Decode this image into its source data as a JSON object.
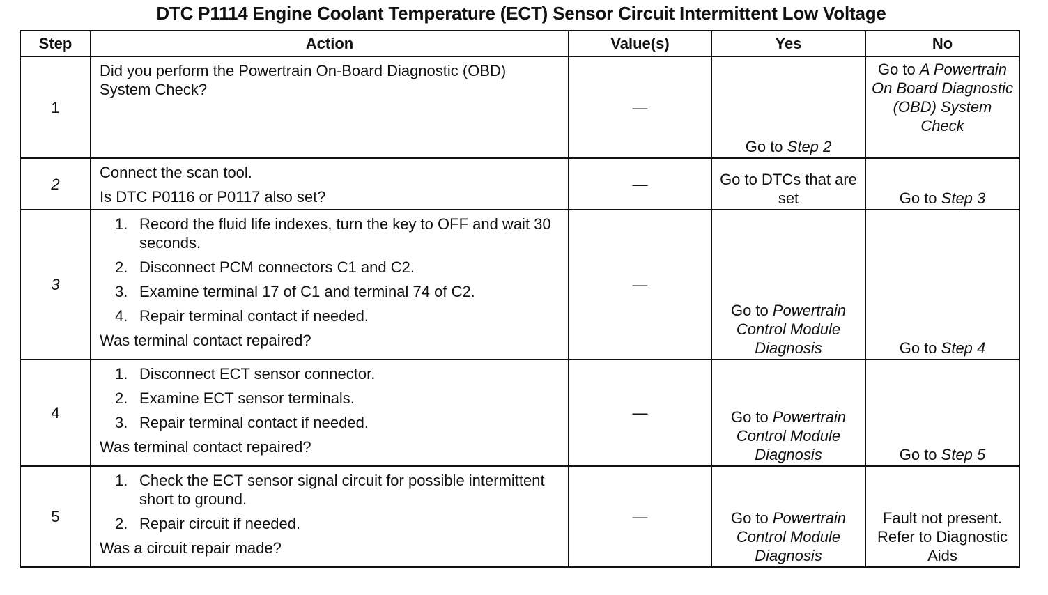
{
  "title": "DTC P1114 Engine Coolant Temperature (ECT) Sensor Circuit Intermittent Low Voltage",
  "headers": [
    "Step",
    "Action",
    "Value(s)",
    "Yes",
    "No"
  ],
  "rows": [
    {
      "step": "1",
      "step_italic": false,
      "action": [
        {
          "type": "p",
          "text": "Did you perform the Powertrain On-Board Diagnostic (OBD) System Check?"
        }
      ],
      "value": "—",
      "yes": [
        {
          "t": "Go to "
        },
        {
          "t": "Step 2",
          "i": true
        }
      ],
      "no": [
        {
          "t": "Go to "
        },
        {
          "t": "A Powertrain On Board Diagnostic (OBD) System Check",
          "i": true
        }
      ],
      "no_top": true
    },
    {
      "step": "2",
      "step_italic": true,
      "action": [
        {
          "type": "p",
          "text": "Connect the scan tool."
        },
        {
          "type": "p",
          "text": "Is DTC P0116 or P0117 also set?"
        }
      ],
      "value": "—",
      "yes": [
        {
          "t": "Go to DTCs that are set"
        }
      ],
      "no": [
        {
          "t": "Go to "
        },
        {
          "t": "Step 3",
          "i": true
        }
      ]
    },
    {
      "step": "3",
      "step_italic": true,
      "action": [
        {
          "type": "li",
          "n": "1.",
          "text": "Record the fluid life indexes, turn the key to OFF and wait 30 seconds."
        },
        {
          "type": "li",
          "n": "2.",
          "text": "Disconnect PCM connectors C1 and C2."
        },
        {
          "type": "li",
          "n": "3.",
          "text": "Examine terminal 17 of C1 and terminal 74 of C2."
        },
        {
          "type": "li",
          "n": "4.",
          "text": "Repair terminal contact if needed."
        },
        {
          "type": "p",
          "text": "Was terminal contact repaired?"
        }
      ],
      "value": "—",
      "yes": [
        {
          "t": "Go to "
        },
        {
          "t": "Powertrain Control Module Diagnosis",
          "i": true
        }
      ],
      "no": [
        {
          "t": "Go to "
        },
        {
          "t": "Step 4",
          "i": true
        }
      ]
    },
    {
      "step": "4",
      "step_italic": false,
      "action": [
        {
          "type": "li",
          "n": "1.",
          "text": "Disconnect ECT sensor connector."
        },
        {
          "type": "li",
          "n": "2.",
          "text": "Examine ECT sensor terminals."
        },
        {
          "type": "li",
          "n": "3.",
          "text": "Repair terminal contact if needed."
        },
        {
          "type": "p",
          "text": "Was terminal contact repaired?"
        }
      ],
      "value": "—",
      "yes": [
        {
          "t": "Go to "
        },
        {
          "t": "Powertrain Control Module Diagnosis",
          "i": true
        }
      ],
      "no": [
        {
          "t": "Go to "
        },
        {
          "t": "Step 5",
          "i": true
        }
      ]
    },
    {
      "step": "5",
      "step_italic": false,
      "action": [
        {
          "type": "li",
          "n": "1.",
          "text": "Check the ECT sensor signal circuit for possible intermittent short to ground."
        },
        {
          "type": "li",
          "n": "2.",
          "text": "Repair circuit if needed."
        },
        {
          "type": "p",
          "text": "Was a circuit repair made?"
        }
      ],
      "value": "—",
      "yes": [
        {
          "t": "Go to "
        },
        {
          "t": "Powertrain Control Module Diagnosis",
          "i": true
        }
      ],
      "no": [
        {
          "t": "Fault not present. Refer to Diagnostic Aids"
        }
      ]
    }
  ]
}
